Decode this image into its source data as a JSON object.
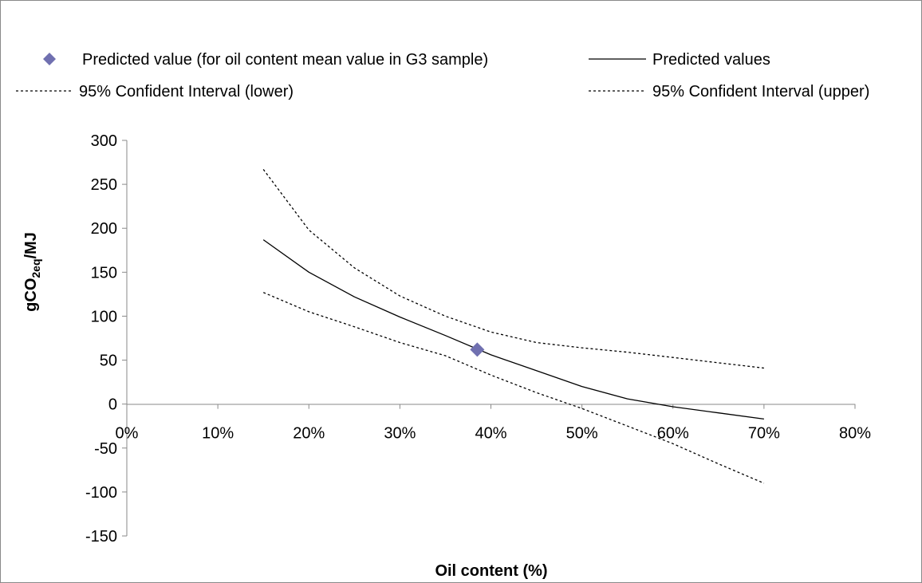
{
  "chart_data": {
    "type": "line",
    "xlabel": "Oil content (%)",
    "ylabel_main": "gCO",
    "ylabel_sub": "2eq",
    "ylabel_tail": "/MJ",
    "xlim": [
      0,
      0.8
    ],
    "ylim": [
      -150,
      300
    ],
    "x_ticks": [
      0,
      0.1,
      0.2,
      0.3,
      0.4,
      0.5,
      0.6,
      0.7,
      0.8
    ],
    "x_tick_labels": [
      "0%",
      "10%",
      "20%",
      "30%",
      "40%",
      "50%",
      "60%",
      "70%",
      "80%"
    ],
    "y_ticks": [
      300,
      250,
      200,
      150,
      100,
      50,
      0,
      -50,
      -100,
      -150
    ],
    "y_tick_labels": [
      "300",
      "250",
      "200",
      "150",
      "100",
      "50",
      "0",
      "-50",
      "-100",
      "-150"
    ],
    "grid": false,
    "legend_position": "top",
    "legend": [
      {
        "label": "Predicted value (for oil content mean value in G3 sample)",
        "marker": "diamond"
      },
      {
        "label": "Predicted values",
        "marker": "solid-line"
      },
      {
        "label": "95% Confident Interval (lower)",
        "marker": "dotted-line"
      },
      {
        "label": "95% Confident Interval (upper)",
        "marker": "dotted-line"
      }
    ],
    "series": [
      {
        "name": "Predicted value (for oil content mean value in G3 sample)",
        "style": "marker",
        "color": "#7070b0",
        "points": [
          [
            0.385,
            62
          ]
        ]
      },
      {
        "name": "Predicted values",
        "style": "solid",
        "color": "#000000",
        "points": [
          [
            0.15,
            187
          ],
          [
            0.2,
            150
          ],
          [
            0.25,
            122
          ],
          [
            0.3,
            99
          ],
          [
            0.35,
            78
          ],
          [
            0.4,
            56
          ],
          [
            0.45,
            38
          ],
          [
            0.5,
            20
          ],
          [
            0.55,
            6
          ],
          [
            0.6,
            -3
          ],
          [
            0.65,
            -10
          ],
          [
            0.7,
            -17
          ]
        ]
      },
      {
        "name": "95% Confident Interval (lower)",
        "style": "dotted",
        "color": "#000000",
        "points": [
          [
            0.15,
            127
          ],
          [
            0.2,
            105
          ],
          [
            0.25,
            88
          ],
          [
            0.3,
            70
          ],
          [
            0.35,
            55
          ],
          [
            0.4,
            33
          ],
          [
            0.45,
            13
          ],
          [
            0.5,
            -5
          ],
          [
            0.55,
            -25
          ],
          [
            0.6,
            -45
          ],
          [
            0.65,
            -68
          ],
          [
            0.7,
            -90
          ]
        ]
      },
      {
        "name": "95% Confident Interval (upper)",
        "style": "dotted",
        "color": "#000000",
        "points": [
          [
            0.15,
            267
          ],
          [
            0.2,
            198
          ],
          [
            0.25,
            155
          ],
          [
            0.3,
            123
          ],
          [
            0.35,
            100
          ],
          [
            0.4,
            82
          ],
          [
            0.45,
            70
          ],
          [
            0.5,
            64
          ],
          [
            0.55,
            59
          ],
          [
            0.6,
            53
          ],
          [
            0.65,
            47
          ],
          [
            0.7,
            41
          ]
        ]
      }
    ]
  }
}
